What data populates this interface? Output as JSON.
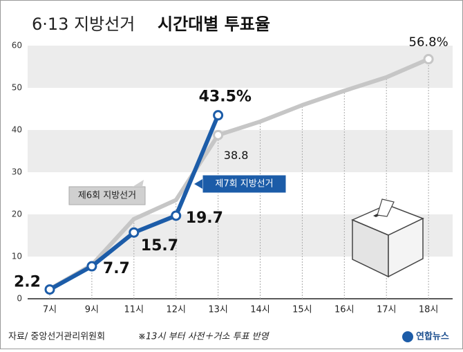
{
  "chart_data": {
    "type": "line",
    "title": [
      "6·13 지방선거",
      "시간대별 투표율"
    ],
    "categories": [
      "7시",
      "9시",
      "11시",
      "12시",
      "13시",
      "14시",
      "15시",
      "16시",
      "17시",
      "18시"
    ],
    "series": [
      {
        "name": "제6회 지방선거",
        "color": "#c6c6c6",
        "values": [
          2.3,
          8.0,
          18.9,
          23.4,
          38.8,
          42.0,
          45.9,
          49.3,
          52.5,
          56.8
        ],
        "value_labels": [
          null,
          null,
          null,
          null,
          "38.8",
          null,
          null,
          null,
          null,
          "56.8%"
        ]
      },
      {
        "name": "제7회 지방선거",
        "color": "#1c5ca8",
        "values": [
          2.2,
          7.7,
          15.7,
          19.7,
          43.5,
          null,
          null,
          null,
          null,
          null
        ],
        "value_labels": [
          "2.2",
          "7.7",
          "15.7",
          "19.7",
          "43.5%",
          null,
          null,
          null,
          null,
          null
        ]
      }
    ],
    "ylim": [
      0,
      60
    ],
    "yticks": [
      0,
      10,
      20,
      30,
      40,
      50,
      60
    ],
    "grid": true,
    "source": "자료/ 중앙선거관리위원회",
    "note": "※13시 부터 사전＋거소 투표 반영",
    "logo": "연합뉴스"
  }
}
